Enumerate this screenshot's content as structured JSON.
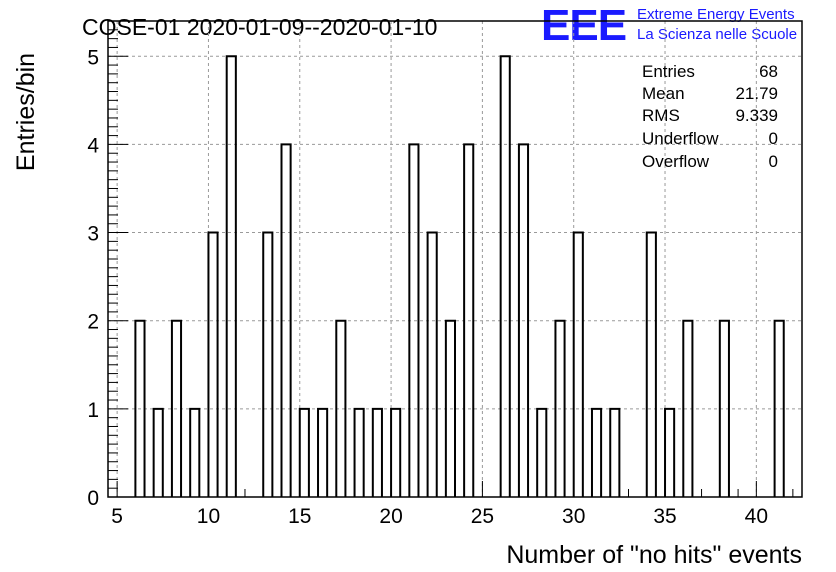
{
  "header": {
    "title": "COSE-01 2020-01-09--2020-01-10",
    "logo_text": "EEE",
    "logo_line1": "Extreme Energy Events",
    "logo_line2": "La Scienza nelle Scuole",
    "logo_color": "#1a1aff"
  },
  "stats": {
    "entries_label": "Entries",
    "entries_value": "68",
    "mean_label": "Mean",
    "mean_value": "21.79",
    "rms_label": "RMS",
    "rms_value": "9.339",
    "underflow_label": "Underflow",
    "underflow_value": "0",
    "overflow_label": "Overflow",
    "overflow_value": "0"
  },
  "chart_data": {
    "type": "bar",
    "histogram": true,
    "xlabel": "Number of \"no hits\" events",
    "ylabel": "Entries/bin",
    "xlim": [
      4.5,
      42.5
    ],
    "ylim": [
      0,
      5.4
    ],
    "xticks": [
      5,
      10,
      15,
      20,
      25,
      30,
      35,
      40
    ],
    "yticks": [
      0,
      1,
      2,
      3,
      4,
      5
    ],
    "grid": true,
    "bin_width": 0.5,
    "bins": [
      {
        "x": 6,
        "y": 2
      },
      {
        "x": 7,
        "y": 1
      },
      {
        "x": 8,
        "y": 2
      },
      {
        "x": 9,
        "y": 1
      },
      {
        "x": 10,
        "y": 3
      },
      {
        "x": 11,
        "y": 5
      },
      {
        "x": 13,
        "y": 3
      },
      {
        "x": 14,
        "y": 4
      },
      {
        "x": 15,
        "y": 1
      },
      {
        "x": 16,
        "y": 1
      },
      {
        "x": 17,
        "y": 2
      },
      {
        "x": 18,
        "y": 1
      },
      {
        "x": 19,
        "y": 1
      },
      {
        "x": 20,
        "y": 1
      },
      {
        "x": 21,
        "y": 4
      },
      {
        "x": 22,
        "y": 3
      },
      {
        "x": 23,
        "y": 2
      },
      {
        "x": 24,
        "y": 4
      },
      {
        "x": 26,
        "y": 5
      },
      {
        "x": 27,
        "y": 4
      },
      {
        "x": 28,
        "y": 1
      },
      {
        "x": 29,
        "y": 2
      },
      {
        "x": 30,
        "y": 3
      },
      {
        "x": 31,
        "y": 1
      },
      {
        "x": 32,
        "y": 1
      },
      {
        "x": 34,
        "y": 3
      },
      {
        "x": 35,
        "y": 1
      },
      {
        "x": 36,
        "y": 2
      },
      {
        "x": 38,
        "y": 2
      },
      {
        "x": 41,
        "y": 2
      }
    ]
  }
}
